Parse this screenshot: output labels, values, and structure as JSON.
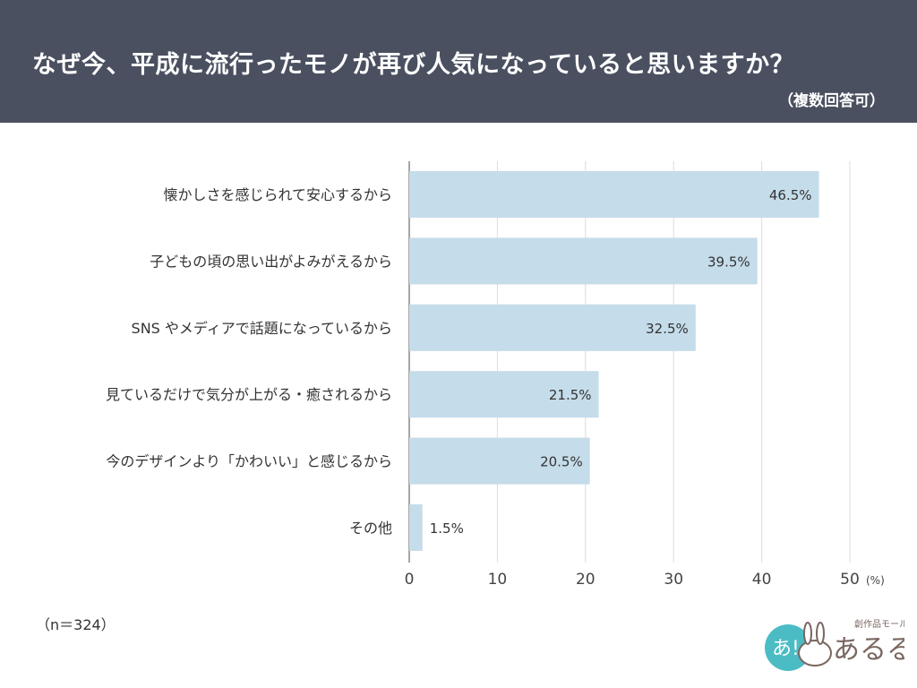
{
  "header": {
    "title": "なぜ今、平成に流行ったモノが再び人気になっていると思いますか？",
    "subtitle": "（複数回答可）"
  },
  "note": "（n＝324）",
  "logo": {
    "text": "あるる",
    "tagline": "創作品モール"
  },
  "chart_data": {
    "type": "bar",
    "orientation": "horizontal",
    "categories": [
      "懐かしさを感じられて安心するから",
      "子どもの頃の思い出がよみがえるから",
      "SNS やメディアで話題になっているから",
      "見ているだけで気分が上がる・癒されるから",
      "今のデザインより「かわいい」と感じるから",
      "その他"
    ],
    "values": [
      46.5,
      39.5,
      32.5,
      21.5,
      20.5,
      1.5
    ],
    "data_labels": [
      "46.5%",
      "39.5%",
      "32.5%",
      "21.5%",
      "20.5%",
      "1.5%"
    ],
    "xlim": [
      0,
      50
    ],
    "xticks": [
      "0",
      "10",
      "20",
      "30",
      "40",
      "50"
    ],
    "xunit": "(%)",
    "grid": true,
    "bar_color": "#c5dcea",
    "axis_color": "#888888"
  }
}
